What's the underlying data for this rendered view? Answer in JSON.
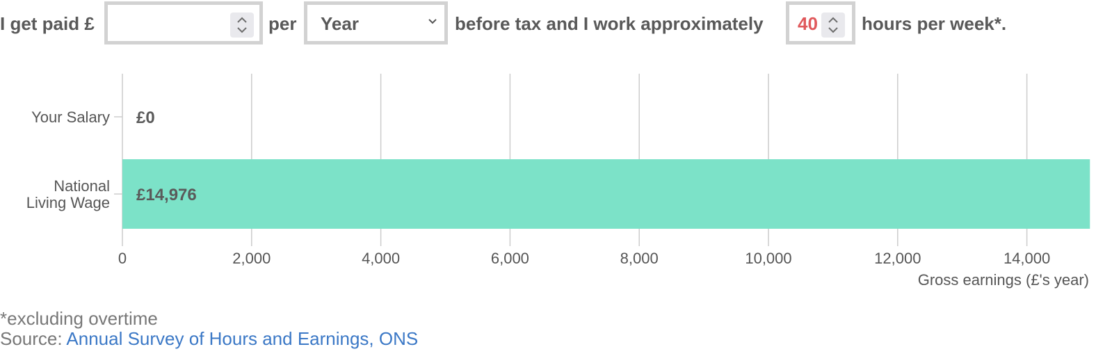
{
  "form": {
    "prefix": "I get paid £",
    "salary_input": {
      "value": "",
      "placeholder": ""
    },
    "per_label": "per",
    "period_select": {
      "selected": "Year"
    },
    "middle_text": "before tax and I work approximately",
    "hours_input": {
      "value": "40"
    },
    "suffix": "hours per week*."
  },
  "chart_data": {
    "type": "bar",
    "orientation": "horizontal",
    "categories": [
      [
        "Your Salary"
      ],
      [
        "National",
        "Living Wage"
      ]
    ],
    "values": [
      0,
      14976
    ],
    "value_labels": [
      "£0",
      "£14,976"
    ],
    "xlabel": "Gross earnings (£'s year)",
    "xticks": [
      "0",
      "2,000",
      "4,000",
      "6,000",
      "8,000",
      "10,000",
      "12,000",
      "14,000"
    ],
    "xlim": [
      0,
      15000
    ],
    "grid": true,
    "bar_color": "#7ce2c8"
  },
  "footnote": {
    "text": "*excluding overtime",
    "source_label": "Source: ",
    "source_link": "Annual Survey of Hours and Earnings, ONS"
  },
  "colors": {
    "accent_hours": "#e0585b",
    "link": "#3b78c6",
    "border": "#d2d2d2"
  }
}
